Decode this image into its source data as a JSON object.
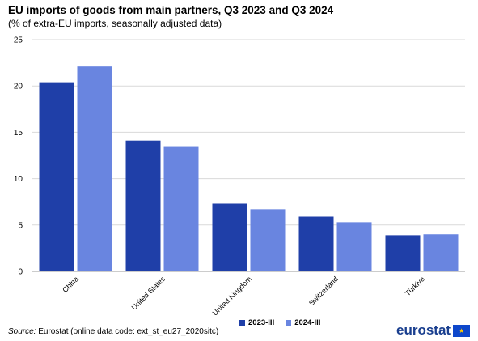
{
  "header": {
    "title": "EU imports of goods from main partners, Q3 2023 and Q3 2024",
    "subtitle": "(% of extra-EU imports, seasonally adjusted data)"
  },
  "footer": {
    "source_label": "Source:",
    "source_text": " Eurostat (online data code: ext_st_eu27_2020sitc)",
    "logo_text": "eurostat",
    "logo_flag_glyph": "★"
  },
  "colors": {
    "series_2023": "#1f3fa8",
    "series_2024": "#6985e0",
    "gridline": "#d9d9d9",
    "axis_text": "#000000"
  },
  "chart_data": {
    "type": "bar",
    "title": "EU imports of goods from main partners, Q3 2023 and Q3 2024",
    "subtitle": "(% of extra-EU imports, seasonally adjusted data)",
    "xlabel": "",
    "ylabel": "",
    "categories": [
      "China",
      "United States",
      "United Kingdom",
      "Switzerland",
      "Türkiye"
    ],
    "series": [
      {
        "name": "2023-III",
        "values": [
          20.4,
          14.1,
          7.3,
          5.9,
          3.9
        ]
      },
      {
        "name": "2024-III",
        "values": [
          22.1,
          13.5,
          6.7,
          5.3,
          4.0
        ]
      }
    ],
    "ylim": [
      0,
      25
    ],
    "yticks": [
      0,
      5,
      10,
      15,
      20,
      25
    ],
    "grid": true,
    "legend_position": "bottom"
  }
}
